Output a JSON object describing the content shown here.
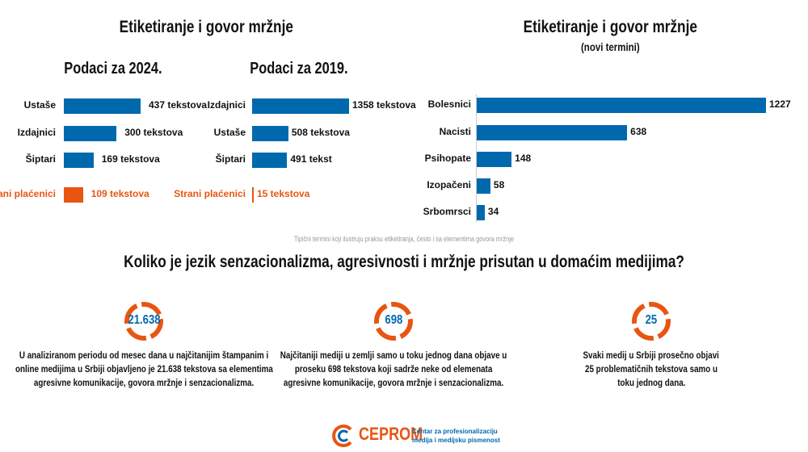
{
  "left_title": "Etiketiranje i govor mržnje",
  "right_title": "Etiketiranje i govor mržnje",
  "right_subtitle": "(novi termini)",
  "colors": {
    "bar": "#0069ae",
    "highlight": "#e85512",
    "ring": "#e85512",
    "stat": "#0069ae"
  },
  "chart_data": [
    {
      "type": "bar",
      "orientation": "horizontal",
      "title": "Podaci za 2024.",
      "categories": [
        "Ustaše",
        "Izdajnici",
        "Šiptari",
        "Strani plaćenici"
      ],
      "values": [
        437,
        300,
        169,
        109
      ],
      "value_labels": [
        "437 tekstova",
        "300 tekstova",
        "169   tekstova",
        "109 tekstova"
      ],
      "highlight": [
        "Strani plaćenici"
      ]
    },
    {
      "type": "bar",
      "orientation": "horizontal",
      "title": "Podaci za 2019.",
      "categories": [
        "Izdajnici",
        "Ustaše",
        "Šiptari",
        "Strani plaćenici"
      ],
      "values": [
        1358,
        508,
        491,
        15
      ],
      "value_labels": [
        "1358 tekstova",
        "508 tekstova",
        "491 tekst",
        "15 tekstova"
      ],
      "highlight": [
        "Strani plaćenici"
      ]
    },
    {
      "type": "bar",
      "orientation": "horizontal",
      "title": "",
      "categories": [
        "Bolesnici",
        "Nacisti",
        "Psihopate",
        "Izopačeni",
        "Srbomrsci"
      ],
      "values": [
        1227,
        638,
        148,
        58,
        34
      ],
      "value_labels": [
        "1227",
        "638",
        "148",
        "58",
        "34"
      ]
    }
  ],
  "caption": "Tipični termini koji ilustruju praksu etiketiranja, često i sa elementima govora mržnje",
  "question": "Koliko je jezik senzacionalizma, agresivnosti i mržnje prisutan u domaćim medijima?",
  "stats": [
    {
      "value": "21.638",
      "lines": [
        "U analiziranom periodu od mesec dana u najčitanijim štampanim i",
        "online medijima u Srbiji objavljeno je 21.638 tekstova sa elementima",
        "agresivne komunikacije, govora mržnje i senzacionalizma."
      ]
    },
    {
      "value": "698",
      "lines": [
        "Najčitaniji mediji u zemlji samo u toku jednog dana objave u",
        "proseku 698 tekstova koji sadrže neke od elemenata",
        "agresivne komunikacije, govora mržnje i senzacionalizma."
      ]
    },
    {
      "value": "25",
      "lines": [
        "Svaki medij u Srbiji prosečno objavi",
        "25 problematičnih tekstova samo u",
        "toku jednog dana."
      ]
    }
  ],
  "footer": {
    "logo_text": "CEPROM",
    "tagline_lines": [
      "Centar za profesionalizaciju",
      "medija i medijsku pismenost"
    ]
  }
}
